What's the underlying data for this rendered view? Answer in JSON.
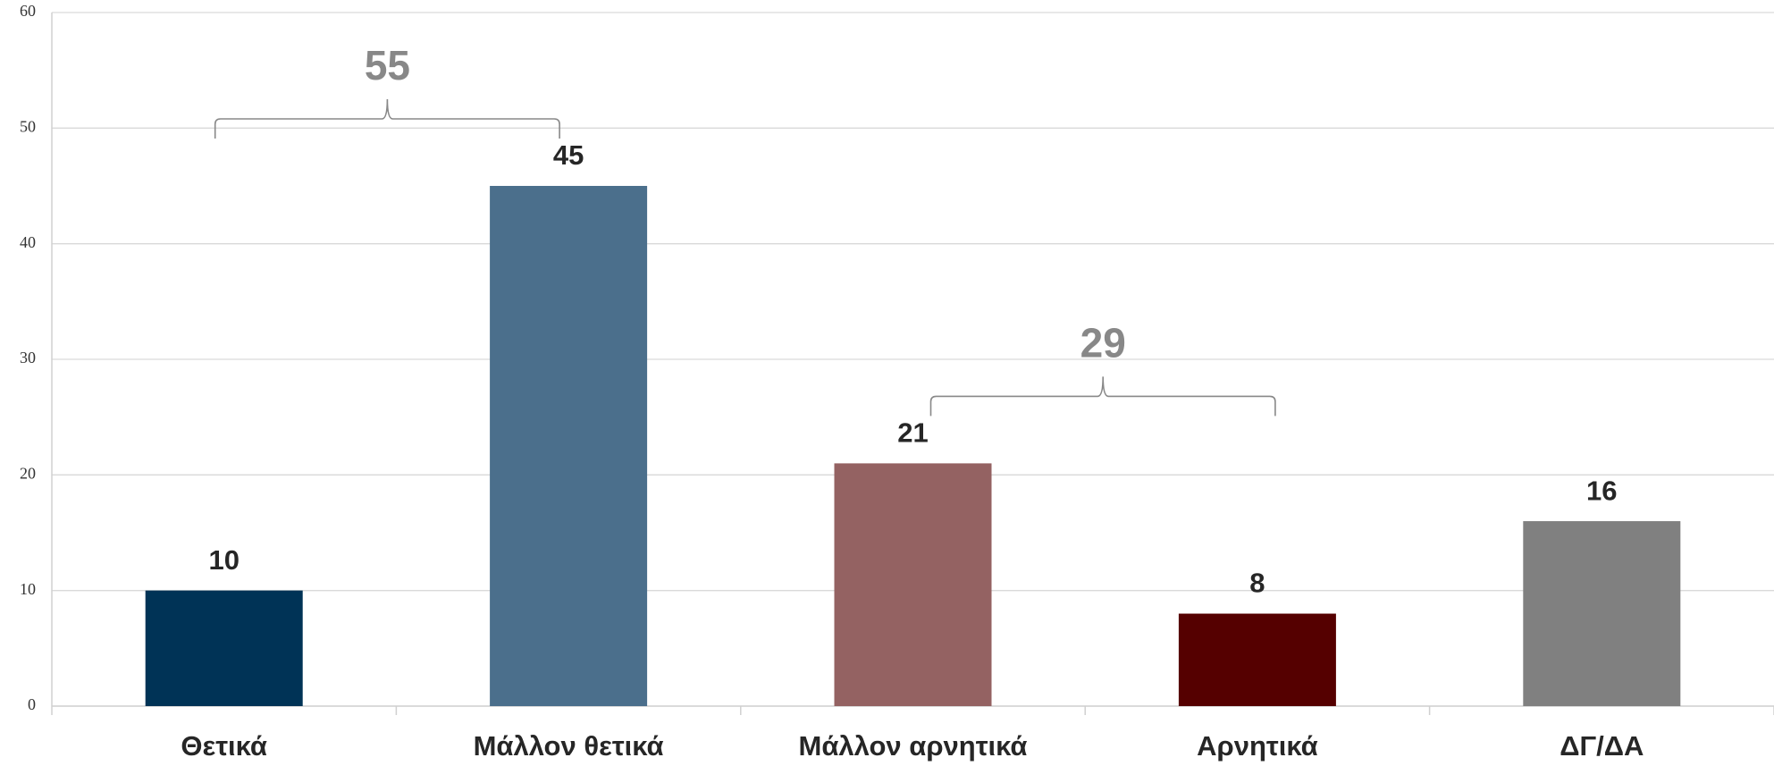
{
  "chart_data": {
    "type": "bar",
    "categories": [
      "Θετικά",
      "Μάλλον θετικά",
      "Μάλλον αρνητικά",
      "Αρνητικά",
      "ΔΓ/ΔΑ"
    ],
    "values": [
      10,
      45,
      21,
      8,
      16
    ],
    "colors": [
      "#003356",
      "#4b6f8c",
      "#946262",
      "#550000",
      "#808080"
    ],
    "ylim": [
      0,
      60
    ],
    "yticks": [
      0,
      10,
      20,
      30,
      40,
      50,
      60
    ],
    "grid": true,
    "annotations": [
      55,
      29
    ]
  }
}
